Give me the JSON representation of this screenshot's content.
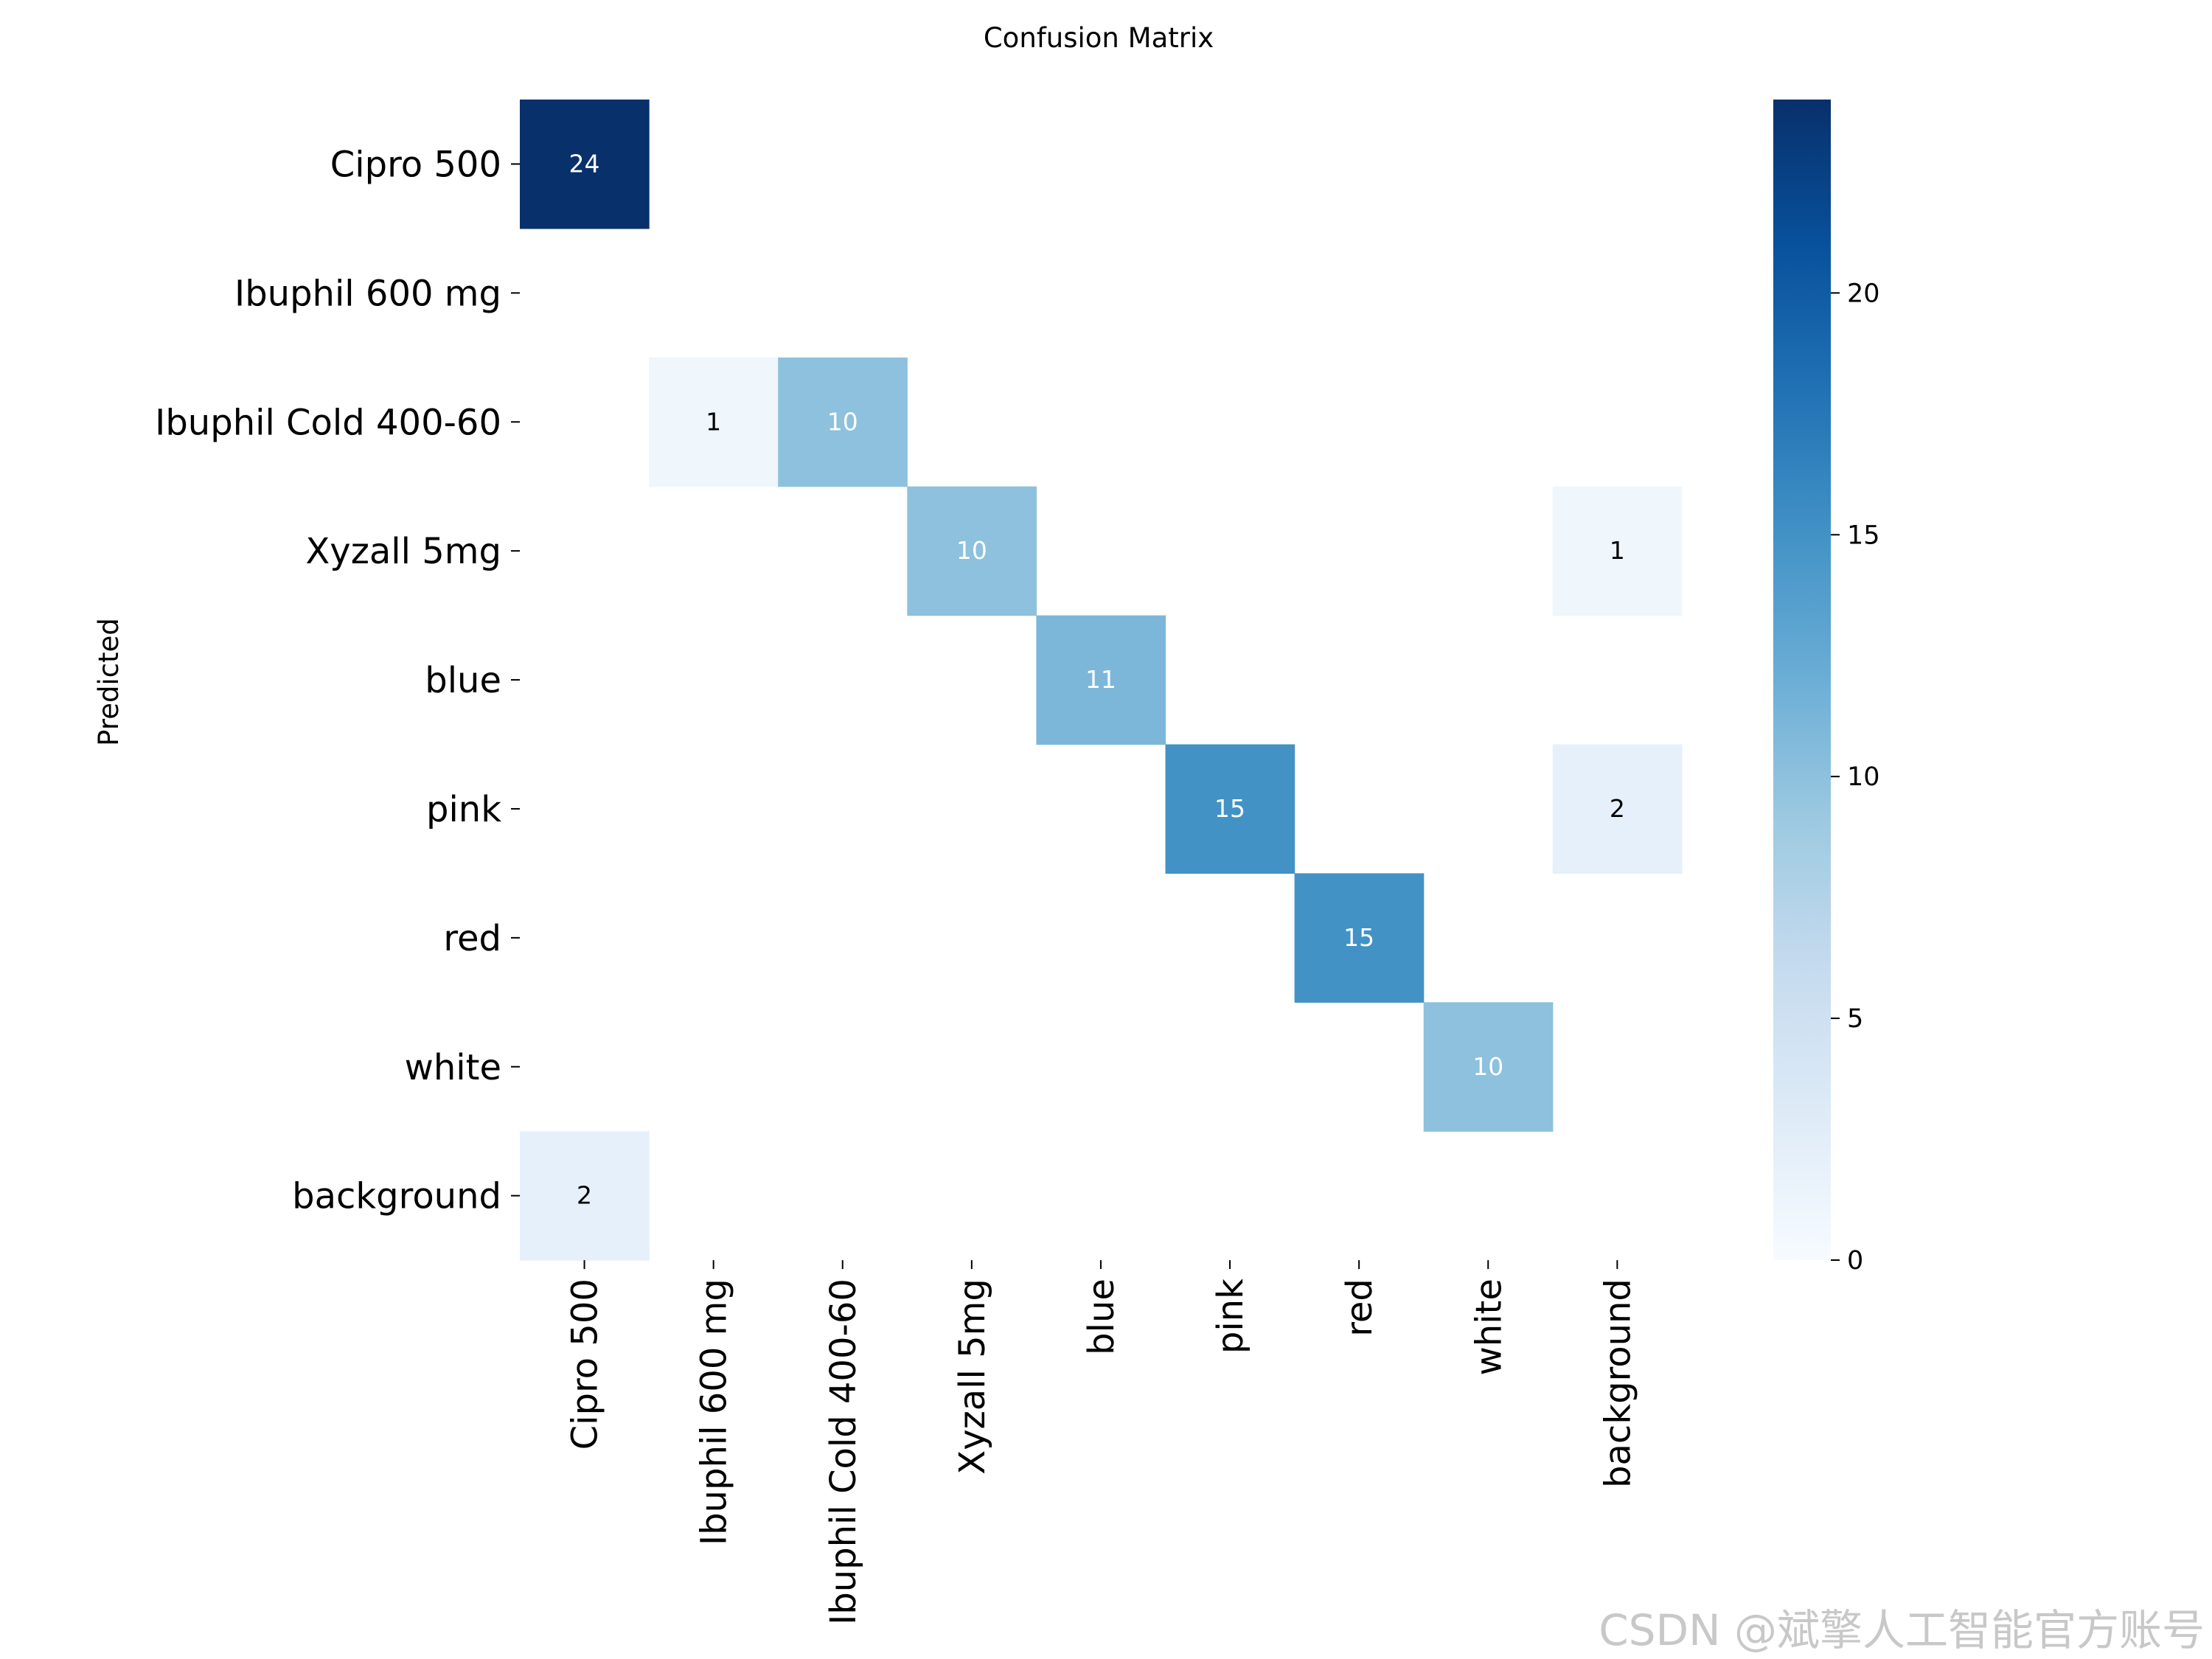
{
  "chart_data": {
    "type": "heatmap",
    "title": "Confusion Matrix",
    "ylabel": "Predicted",
    "xlabel": "",
    "row_labels": [
      "Cipro 500",
      "Ibuphil 600 mg",
      "Ibuphil Cold 400-60",
      "Xyzall 5mg",
      "blue",
      "pink",
      "red",
      "white",
      "background"
    ],
    "col_labels": [
      "Cipro 500",
      "Ibuphil 600 mg",
      "Ibuphil Cold 400-60",
      "Xyzall 5mg",
      "blue",
      "pink",
      "red",
      "white",
      "background"
    ],
    "matrix": [
      [
        24,
        0,
        0,
        0,
        0,
        0,
        0,
        0,
        0
      ],
      [
        0,
        0,
        0,
        0,
        0,
        0,
        0,
        0,
        0
      ],
      [
        0,
        1,
        10,
        0,
        0,
        0,
        0,
        0,
        0
      ],
      [
        0,
        0,
        0,
        10,
        0,
        0,
        0,
        0,
        1
      ],
      [
        0,
        0,
        0,
        0,
        11,
        0,
        0,
        0,
        0
      ],
      [
        0,
        0,
        0,
        0,
        0,
        15,
        0,
        0,
        2
      ],
      [
        0,
        0,
        0,
        0,
        0,
        0,
        15,
        0,
        0
      ],
      [
        0,
        0,
        0,
        0,
        0,
        0,
        0,
        10,
        0
      ],
      [
        2,
        0,
        0,
        0,
        0,
        0,
        0,
        0,
        0
      ]
    ],
    "colormap": "Blues",
    "colorbar": {
      "range": [
        0,
        24
      ],
      "ticks": [
        0,
        5,
        10,
        15,
        20
      ]
    },
    "zero_cells_shown": false,
    "colors": {
      "low": "#f7fbff",
      "high": "#08306b"
    }
  },
  "watermark": "CSDN @斌擎人工智能官方账号"
}
